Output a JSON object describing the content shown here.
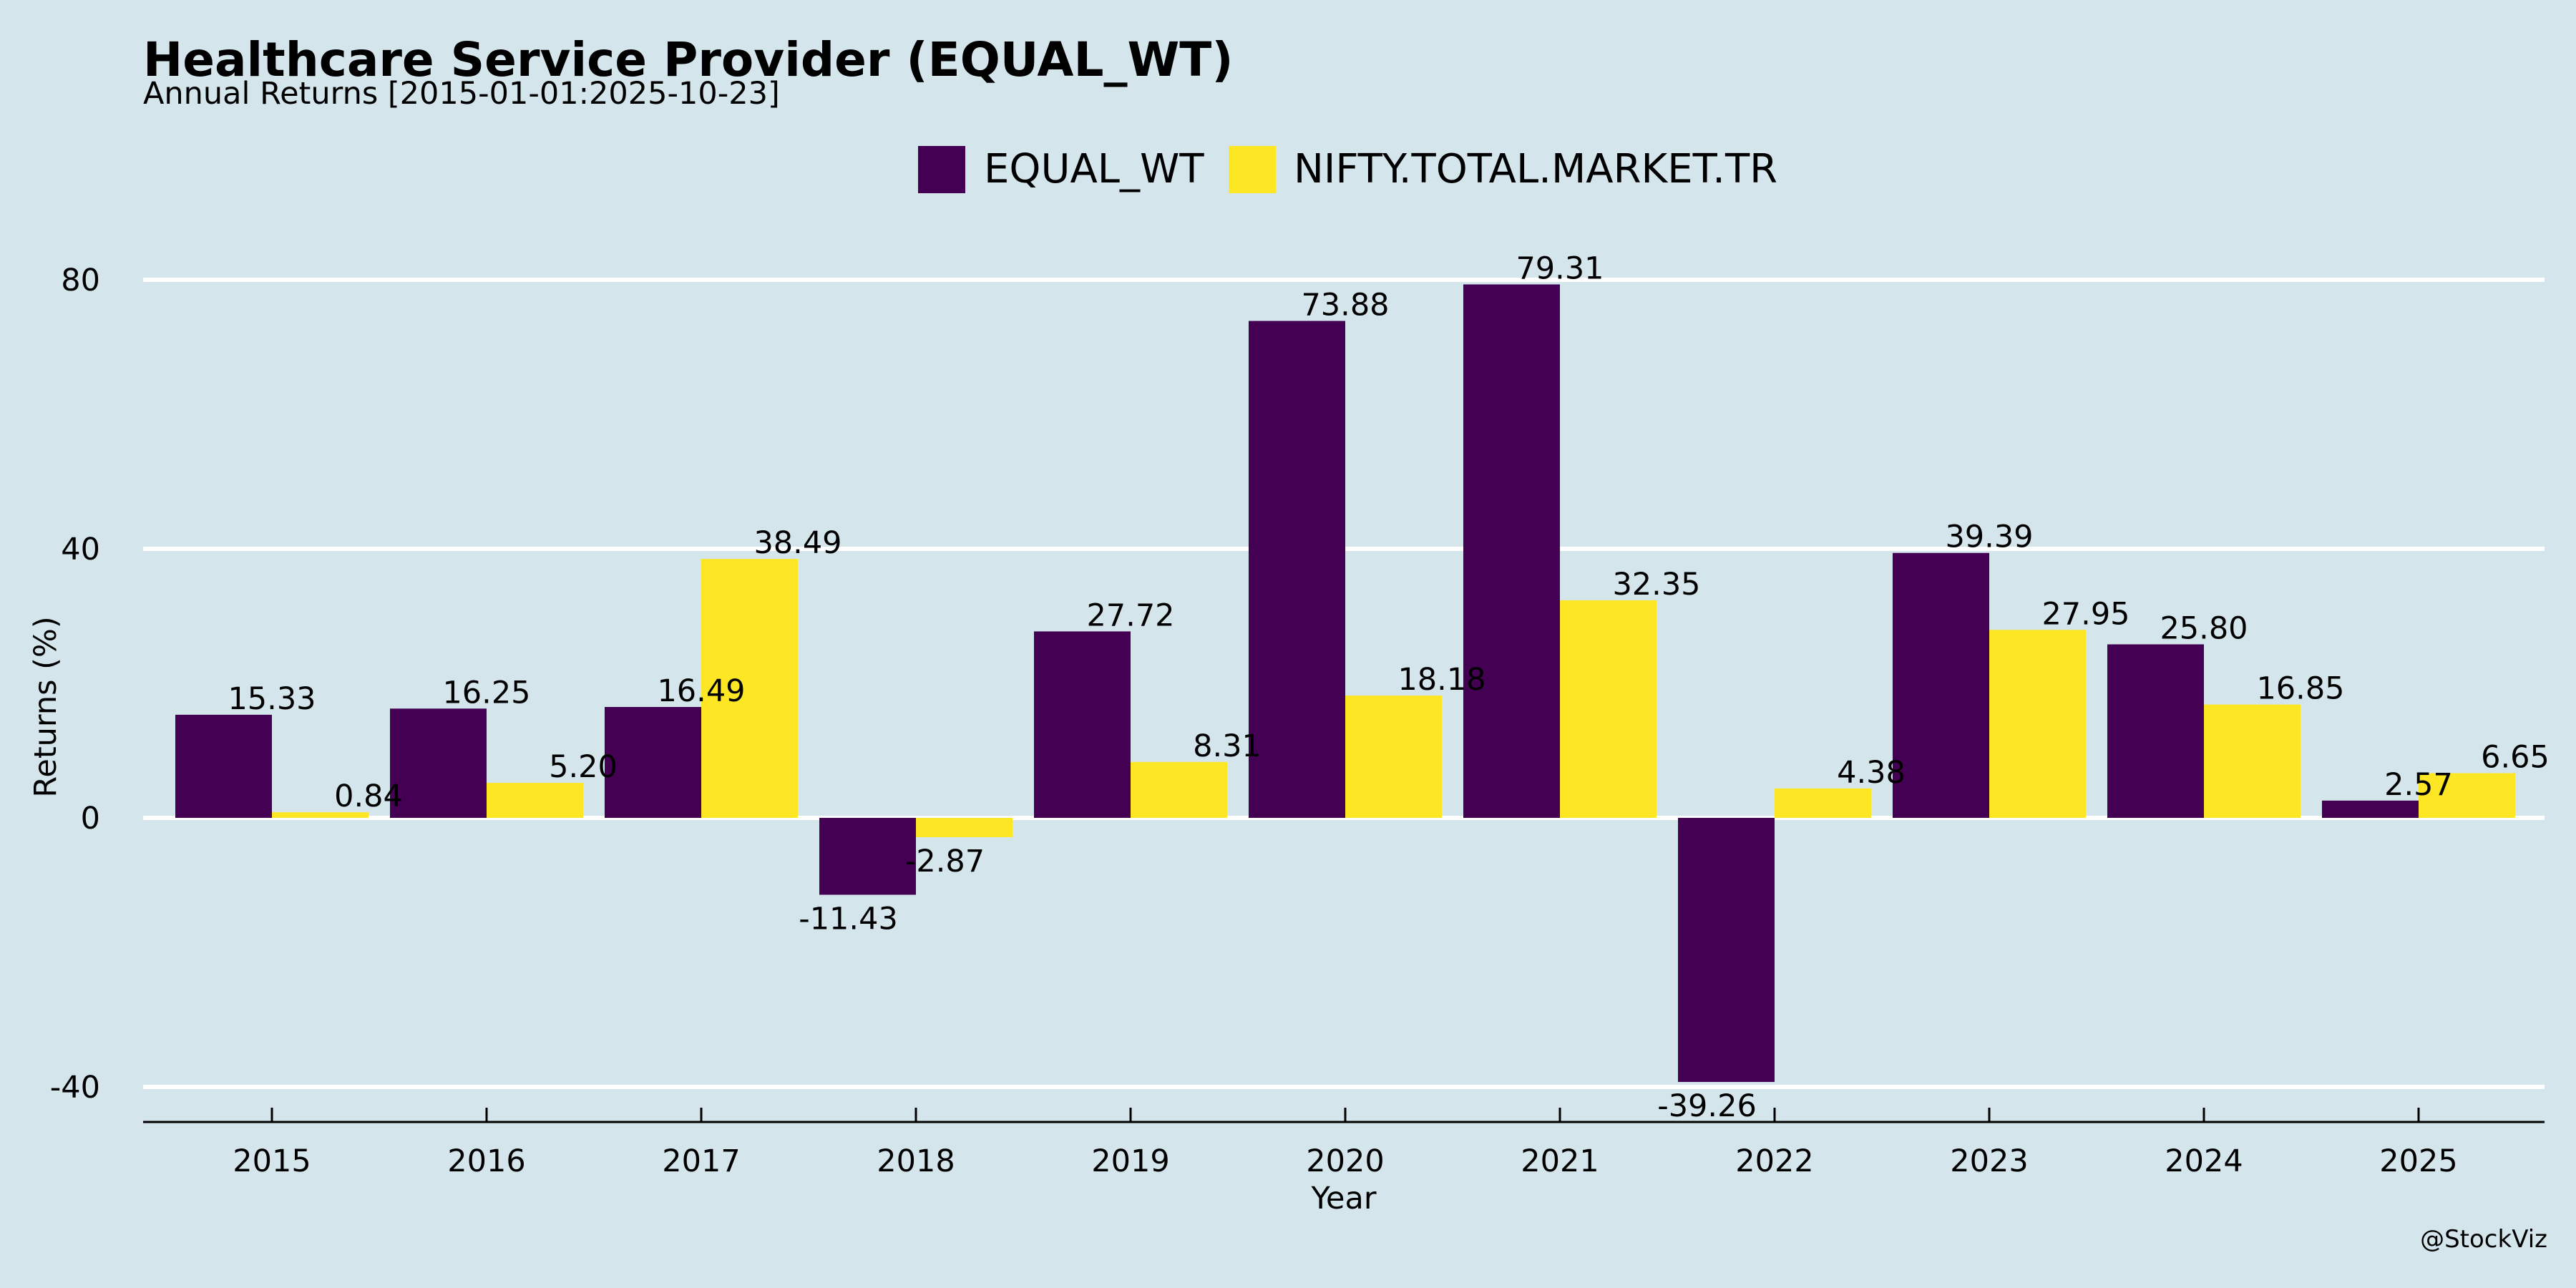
{
  "chart_data": {
    "type": "bar",
    "title": "Healthcare Service Provider (EQUAL_WT)",
    "subtitle": "Annual Returns [2015-01-01:2025-10-23]",
    "xlabel": "Year",
    "ylabel": "Returns (%)",
    "categories": [
      "2015",
      "2016",
      "2017",
      "2018",
      "2019",
      "2020",
      "2021",
      "2022",
      "2023",
      "2024",
      "2025"
    ],
    "series": [
      {
        "name": "EQUAL_WT",
        "color": "#440154",
        "values": [
          15.33,
          16.25,
          16.49,
          -11.43,
          27.72,
          73.88,
          79.31,
          -39.26,
          39.39,
          25.8,
          2.57
        ],
        "labels": [
          "15.33",
          "16.25",
          "16.49",
          "-11.43",
          "27.72",
          "73.88",
          "79.31",
          "-39.26",
          "39.39",
          "25.80",
          "2.57"
        ]
      },
      {
        "name": "NIFTY.TOTAL.MARKET.TR",
        "color": "#fde725",
        "values": [
          0.84,
          5.2,
          38.49,
          -2.87,
          8.31,
          18.18,
          32.35,
          4.38,
          27.95,
          16.85,
          6.65
        ],
        "labels": [
          "0.84",
          "5.20",
          "38.49",
          "-2.87",
          "8.31",
          "18.18",
          "32.35",
          "4.38",
          "27.95",
          "16.85",
          "6.65"
        ]
      }
    ],
    "yticks": [
      -40,
      0,
      40,
      80
    ],
    "ytick_labels": [
      "-40",
      "0",
      "40",
      "80"
    ],
    "ylim": [
      -45,
      85
    ],
    "grid": "horizontal",
    "legend_position": "top-center",
    "background_color": "#d5e5ec",
    "grid_color": "#ffffff"
  },
  "watermark": "@StockViz"
}
